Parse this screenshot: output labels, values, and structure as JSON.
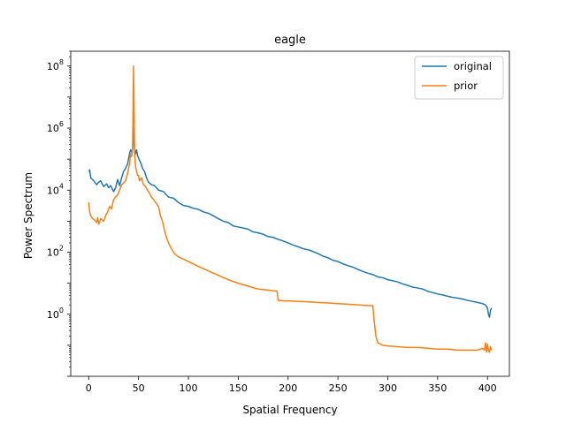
{
  "chart_data": {
    "type": "line",
    "title": "eagle",
    "xlabel": "Spatial Frequency",
    "ylabel": "Power Spectrum",
    "xlim": [
      -18,
      422
    ],
    "ylim": [
      0.01,
      300000000
    ],
    "yscale": "log",
    "grid": false,
    "legend_position": "top-right",
    "x_ticks": [
      {
        "value": 0,
        "label": "0"
      },
      {
        "value": 50,
        "label": "50"
      },
      {
        "value": 100,
        "label": "100"
      },
      {
        "value": 150,
        "label": "150"
      },
      {
        "value": 200,
        "label": "200"
      },
      {
        "value": 250,
        "label": "250"
      },
      {
        "value": 300,
        "label": "300"
      },
      {
        "value": 350,
        "label": "350"
      },
      {
        "value": 400,
        "label": "400"
      }
    ],
    "y_ticks": [
      {
        "value": 1,
        "base": "10",
        "exp": "0"
      },
      {
        "value": 100,
        "base": "10",
        "exp": "2"
      },
      {
        "value": 10000,
        "base": "10",
        "exp": "4"
      },
      {
        "value": 1000000,
        "base": "10",
        "exp": "6"
      },
      {
        "value": 100000000,
        "base": "10",
        "exp": "8"
      }
    ],
    "series": [
      {
        "name": "original",
        "color": "#1f77b4",
        "points": [
          [
            0,
            40000
          ],
          [
            1,
            45000
          ],
          [
            2,
            25000
          ],
          [
            5,
            20000
          ],
          [
            8,
            15000
          ],
          [
            10,
            18000
          ],
          [
            12,
            20000
          ],
          [
            15,
            13000
          ],
          [
            18,
            16000
          ],
          [
            20,
            12000
          ],
          [
            22,
            14000
          ],
          [
            25,
            9000
          ],
          [
            27,
            12000
          ],
          [
            29,
            22000
          ],
          [
            31,
            14000
          ],
          [
            33,
            25000
          ],
          [
            35,
            40000
          ],
          [
            37,
            50000
          ],
          [
            39,
            70000
          ],
          [
            41,
            150000
          ],
          [
            42,
            200000
          ],
          [
            43,
            170000
          ],
          [
            44,
            200000
          ],
          [
            45,
            1000000
          ],
          [
            46,
            200000
          ],
          [
            47,
            150000
          ],
          [
            48,
            200000
          ],
          [
            49,
            130000
          ],
          [
            50,
            110000
          ],
          [
            51,
            90000
          ],
          [
            52,
            80000
          ],
          [
            54,
            50000
          ],
          [
            56,
            40000
          ],
          [
            58,
            25000
          ],
          [
            60,
            18000
          ],
          [
            63,
            15000
          ],
          [
            66,
            14000
          ],
          [
            70,
            10000
          ],
          [
            75,
            9000
          ],
          [
            80,
            6000
          ],
          [
            85,
            5500
          ],
          [
            90,
            4000
          ],
          [
            95,
            3200
          ],
          [
            100,
            3000
          ],
          [
            105,
            2600
          ],
          [
            110,
            2400
          ],
          [
            115,
            2000
          ],
          [
            120,
            1800
          ],
          [
            125,
            1500
          ],
          [
            130,
            1200
          ],
          [
            135,
            1000
          ],
          [
            140,
            900
          ],
          [
            145,
            700
          ],
          [
            150,
            650
          ],
          [
            155,
            600
          ],
          [
            160,
            550
          ],
          [
            165,
            450
          ],
          [
            170,
            420
          ],
          [
            175,
            380
          ],
          [
            180,
            320
          ],
          [
            185,
            300
          ],
          [
            190,
            260
          ],
          [
            195,
            230
          ],
          [
            200,
            200
          ],
          [
            205,
            170
          ],
          [
            210,
            150
          ],
          [
            215,
            130
          ],
          [
            220,
            120
          ],
          [
            225,
            105
          ],
          [
            230,
            90
          ],
          [
            235,
            75
          ],
          [
            240,
            66
          ],
          [
            245,
            55
          ],
          [
            250,
            50
          ],
          [
            255,
            42
          ],
          [
            260,
            37
          ],
          [
            265,
            33
          ],
          [
            270,
            28
          ],
          [
            275,
            24
          ],
          [
            280,
            21
          ],
          [
            285,
            19
          ],
          [
            290,
            16
          ],
          [
            295,
            15
          ],
          [
            300,
            13
          ],
          [
            305,
            12
          ],
          [
            310,
            11
          ],
          [
            315,
            9.5
          ],
          [
            320,
            8.5
          ],
          [
            325,
            7.5
          ],
          [
            330,
            7
          ],
          [
            335,
            6.5
          ],
          [
            340,
            5.5
          ],
          [
            345,
            5
          ],
          [
            350,
            4.5
          ],
          [
            355,
            4.2
          ],
          [
            360,
            3.8
          ],
          [
            365,
            3.5
          ],
          [
            370,
            3.3
          ],
          [
            375,
            3.1
          ],
          [
            380,
            2.8
          ],
          [
            385,
            2.6
          ],
          [
            390,
            2.4
          ],
          [
            395,
            2.2
          ],
          [
            398,
            2.0
          ],
          [
            400,
            1.6
          ],
          [
            401,
            1.0
          ],
          [
            402,
            0.8
          ],
          [
            403,
            1.3
          ],
          [
            404,
            1.6
          ]
        ]
      },
      {
        "name": "prior",
        "color": "#ff7f0e",
        "points": [
          [
            0,
            4000
          ],
          [
            1,
            2000
          ],
          [
            2,
            1500
          ],
          [
            4,
            1200
          ],
          [
            6,
            1100
          ],
          [
            8,
            900
          ],
          [
            9,
            1300
          ],
          [
            10,
            800
          ],
          [
            12,
            1200
          ],
          [
            15,
            1000
          ],
          [
            17,
            1500
          ],
          [
            19,
            2000
          ],
          [
            21,
            3000
          ],
          [
            23,
            2500
          ],
          [
            25,
            5000
          ],
          [
            27,
            6000
          ],
          [
            29,
            7000
          ],
          [
            31,
            10000
          ],
          [
            33,
            15000
          ],
          [
            35,
            17000
          ],
          [
            37,
            20000
          ],
          [
            39,
            35000
          ],
          [
            41,
            70000
          ],
          [
            42,
            150000
          ],
          [
            43,
            120000
          ],
          [
            44,
            200000
          ],
          [
            45,
            100000000
          ],
          [
            46,
            160000
          ],
          [
            47,
            60000
          ],
          [
            48,
            40000
          ],
          [
            49,
            30000
          ],
          [
            50,
            30000
          ],
          [
            51,
            20000
          ],
          [
            53,
            25000
          ],
          [
            55,
            15000
          ],
          [
            57,
            13000
          ],
          [
            59,
            10000
          ],
          [
            61,
            8000
          ],
          [
            63,
            6000
          ],
          [
            66,
            4500
          ],
          [
            70,
            3000
          ],
          [
            72,
            1500
          ],
          [
            74,
            1000
          ],
          [
            76,
            500
          ],
          [
            78,
            300
          ],
          [
            80,
            200
          ],
          [
            83,
            130
          ],
          [
            86,
            90
          ],
          [
            90,
            70
          ],
          [
            95,
            60
          ],
          [
            100,
            50
          ],
          [
            110,
            35
          ],
          [
            120,
            25
          ],
          [
            130,
            18
          ],
          [
            140,
            13
          ],
          [
            150,
            10
          ],
          [
            160,
            8
          ],
          [
            170,
            6.5
          ],
          [
            180,
            6
          ],
          [
            189,
            5.5
          ],
          [
            190,
            2.8
          ],
          [
            195,
            2.7
          ],
          [
            200,
            2.7
          ],
          [
            210,
            2.6
          ],
          [
            220,
            2.5
          ],
          [
            230,
            2.4
          ],
          [
            240,
            2.3
          ],
          [
            250,
            2.2
          ],
          [
            260,
            2.1
          ],
          [
            270,
            2.0
          ],
          [
            280,
            1.9
          ],
          [
            285,
            1.9
          ],
          [
            286,
            0.8
          ],
          [
            287,
            0.4
          ],
          [
            288,
            0.2
          ],
          [
            290,
            0.12
          ],
          [
            295,
            0.1
          ],
          [
            300,
            0.095
          ],
          [
            310,
            0.09
          ],
          [
            320,
            0.085
          ],
          [
            330,
            0.085
          ],
          [
            340,
            0.08
          ],
          [
            350,
            0.075
          ],
          [
            360,
            0.075
          ],
          [
            370,
            0.07
          ],
          [
            380,
            0.07
          ],
          [
            390,
            0.07
          ],
          [
            395,
            0.08
          ],
          [
            397,
            0.07
          ],
          [
            398,
            0.12
          ],
          [
            399,
            0.06
          ],
          [
            400,
            0.11
          ],
          [
            401,
            0.065
          ],
          [
            402,
            0.06
          ],
          [
            403,
            0.09
          ],
          [
            404,
            0.07
          ]
        ]
      }
    ]
  }
}
